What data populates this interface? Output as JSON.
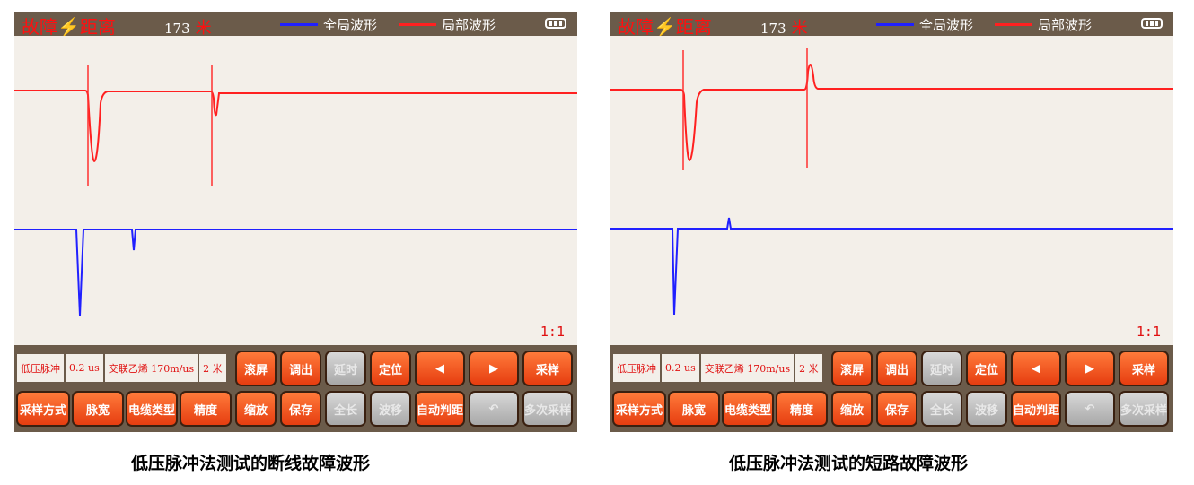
{
  "colors": {
    "global_wave": "#2020ff",
    "local_wave": "#ff2020",
    "header_bg": "#6b5b4a",
    "plot_bg": "#f3efe9",
    "button": "#f05a20"
  },
  "panels": [
    {
      "title": "故障⚡距离",
      "distance": "173",
      "unit": "米",
      "legend": [
        "全局波形",
        "局部波形"
      ],
      "battery_icon": "battery-icon",
      "ratio": "1:1",
      "info": [
        "低压脉冲",
        "0.2 us",
        "交联乙烯  170m/us",
        "2 米"
      ],
      "row1": [
        {
          "label": "滚屏"
        },
        {
          "label": "调出"
        },
        {
          "label": "延时",
          "disabled": true
        },
        {
          "label": "定位"
        },
        {
          "label": "◀",
          "icon": "left-arrow-icon"
        },
        {
          "label": "▶",
          "icon": "right-arrow-icon"
        },
        {
          "label": "采样"
        }
      ],
      "row2": [
        {
          "label": "采样方式"
        },
        {
          "label": "脉宽"
        },
        {
          "label": "电缆类型"
        },
        {
          "label": "精度"
        },
        {
          "label": "缩放"
        },
        {
          "label": "保存"
        },
        {
          "label": "全长",
          "disabled": true
        },
        {
          "label": "波移",
          "disabled": true
        },
        {
          "label": "自动判距"
        },
        {
          "label": "↶",
          "icon": "undo-icon",
          "disabled": true
        },
        {
          "label": "多次采样",
          "disabled": true
        }
      ],
      "caption": "低压脉冲法测试的断线故障波形"
    },
    {
      "title": "故障⚡距离",
      "distance": "173",
      "unit": "米",
      "legend": [
        "全局波形",
        "局部波形"
      ],
      "battery_icon": "battery-icon",
      "ratio": "1:1",
      "info": [
        "低压脉冲",
        "0.2 us",
        "交联乙烯  170m/us",
        "2 米"
      ],
      "row1": [
        {
          "label": "滚屏"
        },
        {
          "label": "调出"
        },
        {
          "label": "延时",
          "disabled": true
        },
        {
          "label": "定位"
        },
        {
          "label": "◀",
          "icon": "left-arrow-icon"
        },
        {
          "label": "▶",
          "icon": "right-arrow-icon"
        },
        {
          "label": "采样"
        }
      ],
      "row2": [
        {
          "label": "采样方式"
        },
        {
          "label": "脉宽"
        },
        {
          "label": "电缆类型"
        },
        {
          "label": "精度"
        },
        {
          "label": "缩放"
        },
        {
          "label": "保存"
        },
        {
          "label": "全长",
          "disabled": true
        },
        {
          "label": "波移",
          "disabled": true
        },
        {
          "label": "自动判距"
        },
        {
          "label": "↶",
          "icon": "undo-icon",
          "disabled": true
        },
        {
          "label": "多次采样",
          "disabled": true
        }
      ],
      "caption": "低压脉冲法测试的短路故障波形"
    }
  ]
}
